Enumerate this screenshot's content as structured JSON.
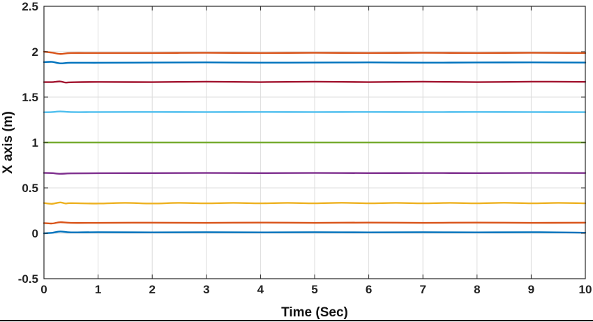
{
  "chart_data": {
    "type": "line",
    "title": "",
    "xlabel": "Time (Sec)",
    "ylabel": "X axis (m)",
    "xlim": [
      0,
      10
    ],
    "ylim": [
      -0.5,
      2.5
    ],
    "xticks": [
      0,
      1,
      2,
      3,
      4,
      5,
      6,
      7,
      8,
      9,
      10
    ],
    "yticks": [
      -0.5,
      0,
      0.5,
      1,
      1.5,
      2,
      2.5
    ],
    "xtick_labels": [
      "0",
      "1",
      "2",
      "3",
      "4",
      "5",
      "6",
      "7",
      "8",
      "9",
      "10"
    ],
    "ytick_labels": [
      "-0.5",
      "0",
      "0.5",
      "1",
      "1.5",
      "2",
      "2.5"
    ],
    "grid": true,
    "legend": "none",
    "series": [
      {
        "color": "#D95319",
        "x": [
          0,
          0.15,
          0.3,
          0.5,
          1,
          2,
          3,
          4,
          5,
          6,
          7,
          8,
          9,
          10
        ],
        "values": [
          2.0,
          1.99,
          1.975,
          1.985,
          1.985,
          1.985,
          1.988,
          1.985,
          1.988,
          1.985,
          1.988,
          1.985,
          1.988,
          1.985
        ]
      },
      {
        "color": "#0072BD",
        "x": [
          0,
          0.15,
          0.3,
          0.5,
          1,
          2,
          3,
          4,
          5,
          6,
          7,
          8,
          9,
          10
        ],
        "values": [
          1.885,
          1.888,
          1.872,
          1.878,
          1.878,
          1.88,
          1.882,
          1.879,
          1.88,
          1.882,
          1.879,
          1.881,
          1.882,
          1.88
        ]
      },
      {
        "color": "#A2142F",
        "x": [
          0,
          0.15,
          0.3,
          0.4,
          0.5,
          1,
          2,
          3,
          4,
          5,
          6,
          7,
          8,
          9,
          10
        ],
        "values": [
          1.665,
          1.665,
          1.672,
          1.66,
          1.663,
          1.667,
          1.665,
          1.67,
          1.665,
          1.67,
          1.665,
          1.67,
          1.665,
          1.67,
          1.668
        ]
      },
      {
        "color": "#4DBEEE",
        "x": [
          0,
          0.15,
          0.3,
          0.5,
          1,
          2,
          3,
          4,
          5,
          6,
          7,
          8,
          9,
          10
        ],
        "values": [
          1.333,
          1.335,
          1.342,
          1.335,
          1.335,
          1.336,
          1.335,
          1.336,
          1.335,
          1.336,
          1.335,
          1.336,
          1.335,
          1.334
        ]
      },
      {
        "color": "#77AC30",
        "x": [
          0,
          10
        ],
        "values": [
          1.0,
          1.0
        ]
      },
      {
        "color": "#7E2F8E",
        "x": [
          0,
          0.15,
          0.3,
          0.5,
          1,
          2,
          3,
          4,
          5,
          6,
          7,
          8,
          9,
          10
        ],
        "values": [
          0.665,
          0.663,
          0.655,
          0.66,
          0.662,
          0.663,
          0.665,
          0.663,
          0.665,
          0.663,
          0.664,
          0.663,
          0.665,
          0.664
        ]
      },
      {
        "color": "#EDB120",
        "x": [
          0,
          0.15,
          0.3,
          0.4,
          0.5,
          1,
          1.5,
          2,
          2.5,
          3,
          3.5,
          4,
          4.5,
          5,
          5.5,
          6,
          6.5,
          7,
          7.5,
          8,
          8.5,
          9,
          9.5,
          10
        ],
        "values": [
          0.333,
          0.325,
          0.34,
          0.328,
          0.332,
          0.328,
          0.335,
          0.328,
          0.335,
          0.33,
          0.335,
          0.33,
          0.335,
          0.33,
          0.336,
          0.33,
          0.335,
          0.33,
          0.335,
          0.33,
          0.336,
          0.33,
          0.335,
          0.33
        ]
      },
      {
        "color": "#D95319",
        "x": [
          0,
          0.15,
          0.3,
          0.5,
          1,
          2,
          3,
          4,
          5,
          6,
          7,
          8,
          9,
          10
        ],
        "values": [
          0.112,
          0.108,
          0.122,
          0.115,
          0.115,
          0.117,
          0.115,
          0.118,
          0.115,
          0.118,
          0.115,
          0.118,
          0.115,
          0.117
        ]
      },
      {
        "color": "#0072BD",
        "x": [
          0,
          0.15,
          0.3,
          0.5,
          1,
          2,
          3,
          4,
          5,
          6,
          7,
          8,
          9,
          9.8,
          10
        ],
        "values": [
          0.0,
          0.005,
          0.02,
          0.01,
          0.012,
          0.01,
          0.012,
          0.01,
          0.012,
          0.01,
          0.012,
          0.01,
          0.012,
          0.008,
          0.006
        ]
      }
    ]
  }
}
